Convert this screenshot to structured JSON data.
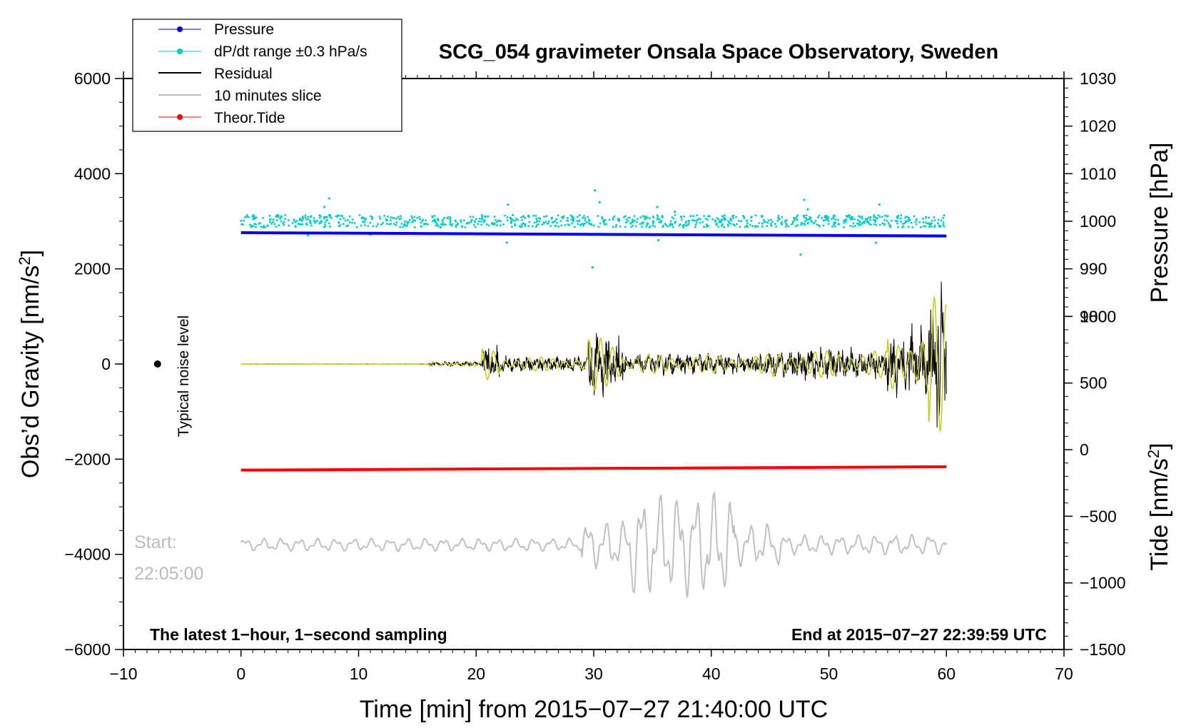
{
  "chart_data": {
    "type": "line",
    "title": "SCG_054 gravimeter Onsala Space Observatory, Sweden",
    "xlabel": "Time [min] from 2015−07−27 21:40:00 UTC",
    "ylabel_left": "Obs’d Gravity [nm/s²]",
    "ylabel_left_main": "Obs’d Gravity [nm/s",
    "ylabel_left_sup": "2",
    "ylabel_left_end": "]",
    "ylabel_right_pressure": "Pressure [hPa]",
    "ylabel_right_tide_main": "Tide [nm/s",
    "ylabel_right_tide_sup": "2",
    "ylabel_right_tide_end": "]",
    "xlim": [
      -10,
      70
    ],
    "ylim_left": [
      -6000,
      6000
    ],
    "xticks": [
      -10,
      0,
      10,
      20,
      30,
      40,
      50,
      60,
      70
    ],
    "xtick_labels": [
      "−10",
      "0",
      "10",
      "20",
      "30",
      "40",
      "50",
      "60",
      "70"
    ],
    "yticks_left": [
      6000,
      4000,
      2000,
      0,
      -2000,
      -4000,
      -6000
    ],
    "ytick_labels_left": [
      "6000",
      "4000",
      "2000",
      "0",
      "−2000",
      "−4000",
      "−6000"
    ],
    "pressure_axis": {
      "ticks": [
        1030,
        1020,
        1010,
        1000,
        990,
        980
      ],
      "labels": [
        "1030",
        "1020",
        "1010",
        "1000",
        "990",
        "980"
      ],
      "range_hpa": [
        1030,
        980
      ],
      "maps_to_gravity": [
        6000,
        1000
      ]
    },
    "tide_axis": {
      "ticks": [
        1000,
        500,
        0,
        -500,
        -1000,
        -1500
      ],
      "labels": [
        "1000",
        "500",
        "0",
        "−500",
        "−1000",
        "−1500"
      ],
      "range_nms2": [
        1000,
        -1500
      ],
      "maps_to_gravity": [
        1000,
        -6000
      ]
    },
    "legend": [
      {
        "label": "Pressure",
        "color": "#0000ff",
        "style": "line-dot"
      },
      {
        "label": "dP/dt range ±0.3 hPa/s",
        "color": "#00cccc",
        "style": "line-dot"
      },
      {
        "label": "Residual",
        "color": "#000000",
        "style": "line"
      },
      {
        "label": "10 minutes slice",
        "color": "#bbbbbb",
        "style": "line"
      },
      {
        "label": "Theor.Tide",
        "color": "#ff0000",
        "style": "line-dot"
      }
    ],
    "series": [
      {
        "name": "Pressure",
        "color": "#0000ff",
        "x": [
          0,
          60
        ],
        "y_hpa": [
          997.6,
          996.9
        ]
      },
      {
        "name": "Theor.Tide",
        "color": "#ff0000",
        "x": [
          0,
          60
        ],
        "y_gravity": [
          -2230,
          -2160
        ]
      },
      {
        "name": "dP/dt range ±0.3 hPa/s",
        "color": "#00cccc",
        "baseline_gravity": 3000,
        "outliers": [
          [
            5.7,
            2700
          ],
          [
            7.1,
            3300
          ],
          [
            7.5,
            3480
          ],
          [
            9.0,
            2900
          ],
          [
            11.0,
            2720
          ],
          [
            22.7,
            3350
          ],
          [
            22.6,
            2550
          ],
          [
            29.9,
            2030
          ],
          [
            30.1,
            3650
          ],
          [
            30.5,
            3400
          ],
          [
            35.4,
            3300
          ],
          [
            35.5,
            2600
          ],
          [
            36.9,
            3200
          ],
          [
            47.6,
            2300
          ],
          [
            47.9,
            3450
          ],
          [
            48.2,
            3250
          ],
          [
            54.0,
            2550
          ],
          [
            54.3,
            3350
          ]
        ]
      },
      {
        "name": "Residual",
        "color": "#000000"
      },
      {
        "name": "Residual (filtered)",
        "color": "#cccc22"
      },
      {
        "name": "10 minutes slice",
        "color": "#c0c0c0",
        "baseline_gravity": -3800
      }
    ],
    "annotations": {
      "noise_label": "Typical noise level",
      "noise_x": -7.1,
      "start_label_1": "Start:",
      "start_label_2": "22:05:00",
      "bottom_left": "The latest 1−hour, 1−second sampling",
      "bottom_right": "End at 2015−07−27 22:39:59 UTC"
    }
  }
}
